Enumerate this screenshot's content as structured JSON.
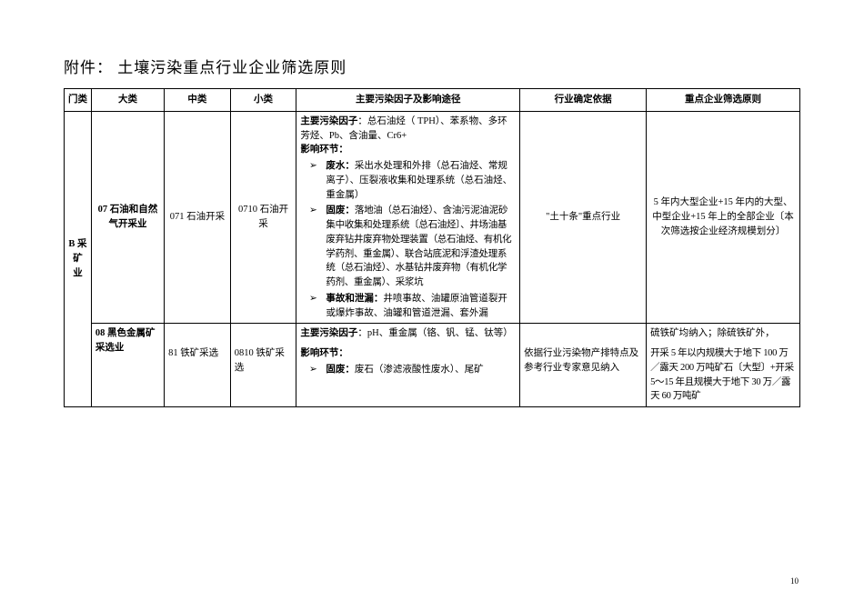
{
  "title": "附件： 土壤污染重点行业企业筛选原则",
  "headers": {
    "gate": "门类",
    "major": "大类",
    "mid": "中类",
    "minor": "小类",
    "factor": "主要污染因子及影响途径",
    "basis": "行业确定依据",
    "principle": "重点企业筛选原则"
  },
  "gate": "B 采矿业",
  "row1": {
    "major": "07 石油和自然气开采业",
    "mid": "071 石油开采",
    "minor": "0710 石油开采",
    "factor_label": "主要污染因子",
    "factor_text": "：总石油烃（ TPH）、苯系物、多环芳烃、Pb、含油量、Cr6+",
    "impact_label": "影响环节：",
    "bullets": [
      {
        "label": "废水：",
        "text": "采出水处理和外排（总石油烃、常规离子）、压裂液收集和处理系统（总石油烃、重金属）"
      },
      {
        "label": "固废：",
        "text": "落地油（总石油烃）、含油污泥油泥砂集中收集和处理系统〔总石油烃〕、井场油基废弃钻井废弃物处理装置（总石油烃、有机化学药剂、重金属）、联合站底泥和浮渣处理系统（总石油烃）、水基钻井废弃物（有机化学药剂、重金属）、采浆坑"
      },
      {
        "label": "事故和泄漏：",
        "text": "井喷事故、油罐原油管道裂开或爆炸事故、油罐和管道泄漏、套外漏"
      }
    ],
    "basis": "\"土十条\"重点行业",
    "principle": "5 年内大型企业+15 年内的大型、中型企业+15 年上的全部企业〔本次筛选按企业经济规模划分〕"
  },
  "row2a": {
    "major": "08 黑色金属矿采选业",
    "factor_label": "主要污染因子",
    "factor_text": "：pH、重金属（铬、钒、锰、钛等）",
    "principle": "硫铁矿均纳入；除硫铁矿外，"
  },
  "row2b": {
    "mid": "81 铁矿采选",
    "minor": "0810 铁矿采选",
    "impact_label": "影响环节：",
    "bullet_label": "固废：",
    "bullet_text": "废石（渗滤液酸性废水）、尾矿",
    "basis": "依据行业污染物产排特点及参考行业专家意见纳入",
    "principle": "开采 5 年以内规模大于地下 100 万／露天 200 万吨矿石〔大型〕+开采 5～15 年且规模大于地下 30 万／露天 60 万吨矿"
  },
  "page_num": "10"
}
